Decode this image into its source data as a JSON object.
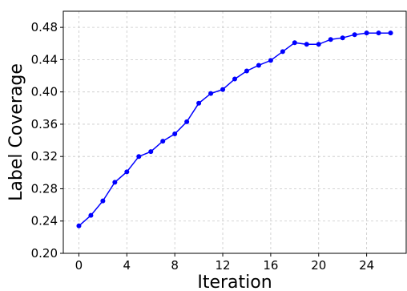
{
  "chart_data": {
    "type": "line",
    "xlabel": "Iteration",
    "ylabel": "Label Coverage",
    "xlim": [
      -1.3,
      27.3
    ],
    "ylim": [
      0.2,
      0.5
    ],
    "xticks": [
      0,
      4,
      8,
      12,
      16,
      20,
      24
    ],
    "yticks": [
      0.2,
      0.24,
      0.28,
      0.32,
      0.36,
      0.4,
      0.44,
      0.48
    ],
    "xtick_labels": [
      "0",
      "4",
      "8",
      "12",
      "16",
      "20",
      "24"
    ],
    "ytick_labels": [
      "0.20",
      "0.24",
      "0.28",
      "0.32",
      "0.36",
      "0.40",
      "0.44",
      "0.48"
    ],
    "grid": true,
    "series": [
      {
        "color": "#0000ff",
        "x": [
          0,
          1,
          2,
          3,
          4,
          5,
          6,
          7,
          8,
          9,
          10,
          11,
          12,
          13,
          14,
          15,
          16,
          17,
          18,
          19,
          20,
          21,
          22,
          23,
          24,
          25,
          26
        ],
        "y": [
          0.234,
          0.247,
          0.265,
          0.288,
          0.301,
          0.32,
          0.326,
          0.339,
          0.348,
          0.363,
          0.386,
          0.398,
          0.403,
          0.416,
          0.426,
          0.433,
          0.439,
          0.45,
          0.461,
          0.459,
          0.459,
          0.465,
          0.467,
          0.471,
          0.473,
          0.473,
          0.473
        ]
      }
    ]
  }
}
